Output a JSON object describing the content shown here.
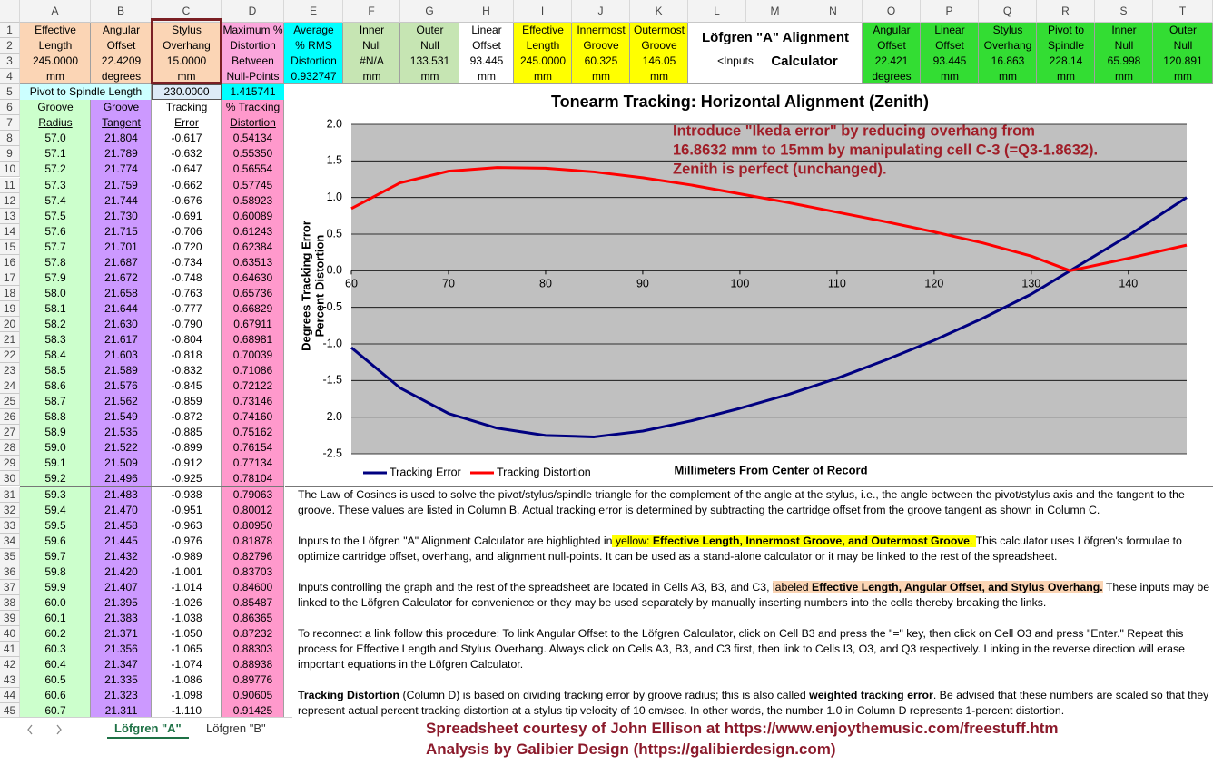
{
  "sheet": {
    "column_letters": [
      "A",
      "B",
      "C",
      "D",
      "E",
      "F",
      "G",
      "H",
      "I",
      "J",
      "K",
      "L",
      "M",
      "N",
      "O",
      "P",
      "Q",
      "R",
      "S",
      "T"
    ],
    "row_numbers": [
      1,
      2,
      3,
      4,
      5,
      6,
      7,
      8,
      9,
      10,
      11,
      12,
      13,
      14,
      15,
      16,
      17,
      18,
      19,
      20,
      21,
      22,
      23,
      24,
      25,
      26,
      27,
      28,
      29,
      30,
      31,
      32,
      33,
      34,
      35,
      36,
      37,
      38,
      39,
      40,
      41,
      42,
      43,
      44,
      45
    ],
    "header_cells": [
      [
        "Effective",
        "Length",
        "245.0000",
        "mm"
      ],
      [
        "Angular",
        "Offset",
        "22.4209",
        "degrees"
      ],
      [
        "Stylus",
        "Overhang",
        "15.0000",
        "mm"
      ],
      [
        "Maximum %",
        "Distortion",
        "Between",
        "Null-Points"
      ],
      [
        "Average",
        "% RMS",
        "Distortion",
        "0.932747"
      ],
      [
        "Inner",
        "Null",
        "#N/A",
        "mm"
      ],
      [
        "Outer",
        "Null",
        "133.531",
        "mm"
      ],
      [
        "Linear",
        "Offset",
        "93.445",
        "mm"
      ],
      [
        "Effective",
        "Length",
        "245.0000",
        "mm"
      ],
      [
        "Innermost",
        "Groove",
        "60.325",
        "mm"
      ],
      [
        "Outermost",
        "Groove",
        "146.05",
        "mm"
      ]
    ],
    "calculator_title": "Löfgren \"A\" Alignment",
    "calculator_inputs_note": "<Inputs",
    "calculator_subtitle": "Calculator",
    "calculator_cells": [
      [
        "Angular",
        "Offset",
        "22.421",
        "degrees"
      ],
      [
        "Linear",
        "Offset",
        "93.445",
        "mm"
      ],
      [
        "Stylus",
        "Overhang",
        "16.863",
        "mm"
      ],
      [
        "Pivot to",
        "Spindle",
        "228.14",
        "mm"
      ],
      [
        "Inner",
        "Null",
        "65.998",
        "mm"
      ],
      [
        "Outer",
        "Null",
        "120.891",
        "mm"
      ]
    ],
    "row5": {
      "label": "Pivot to Spindle Length",
      "pivot_to_spindle": "230.0000",
      "max_distortion": "1.415741"
    },
    "table_headers": [
      [
        "Groove",
        "Radius"
      ],
      [
        "Groove",
        "Tangent"
      ],
      [
        "Tracking",
        "Error"
      ],
      [
        "% Tracking",
        "Distortion"
      ]
    ],
    "rows": [
      [
        "57.0",
        "21.804",
        "-0.617",
        "0.54134"
      ],
      [
        "57.1",
        "21.789",
        "-0.632",
        "0.55350"
      ],
      [
        "57.2",
        "21.774",
        "-0.647",
        "0.56554"
      ],
      [
        "57.3",
        "21.759",
        "-0.662",
        "0.57745"
      ],
      [
        "57.4",
        "21.744",
        "-0.676",
        "0.58923"
      ],
      [
        "57.5",
        "21.730",
        "-0.691",
        "0.60089"
      ],
      [
        "57.6",
        "21.715",
        "-0.706",
        "0.61243"
      ],
      [
        "57.7",
        "21.701",
        "-0.720",
        "0.62384"
      ],
      [
        "57.8",
        "21.687",
        "-0.734",
        "0.63513"
      ],
      [
        "57.9",
        "21.672",
        "-0.748",
        "0.64630"
      ],
      [
        "58.0",
        "21.658",
        "-0.763",
        "0.65736"
      ],
      [
        "58.1",
        "21.644",
        "-0.777",
        "0.66829"
      ],
      [
        "58.2",
        "21.630",
        "-0.790",
        "0.67911"
      ],
      [
        "58.3",
        "21.617",
        "-0.804",
        "0.68981"
      ],
      [
        "58.4",
        "21.603",
        "-0.818",
        "0.70039"
      ],
      [
        "58.5",
        "21.589",
        "-0.832",
        "0.71086"
      ],
      [
        "58.6",
        "21.576",
        "-0.845",
        "0.72122"
      ],
      [
        "58.7",
        "21.562",
        "-0.859",
        "0.73146"
      ],
      [
        "58.8",
        "21.549",
        "-0.872",
        "0.74160"
      ],
      [
        "58.9",
        "21.535",
        "-0.885",
        "0.75162"
      ],
      [
        "59.0",
        "21.522",
        "-0.899",
        "0.76154"
      ],
      [
        "59.1",
        "21.509",
        "-0.912",
        "0.77134"
      ],
      [
        "59.2",
        "21.496",
        "-0.925",
        "0.78104"
      ],
      [
        "59.3",
        "21.483",
        "-0.938",
        "0.79063"
      ],
      [
        "59.4",
        "21.470",
        "-0.951",
        "0.80012"
      ],
      [
        "59.5",
        "21.458",
        "-0.963",
        "0.80950"
      ],
      [
        "59.6",
        "21.445",
        "-0.976",
        "0.81878"
      ],
      [
        "59.7",
        "21.432",
        "-0.989",
        "0.82796"
      ],
      [
        "59.8",
        "21.420",
        "-1.001",
        "0.83703"
      ],
      [
        "59.9",
        "21.407",
        "-1.014",
        "0.84600"
      ],
      [
        "60.0",
        "21.395",
        "-1.026",
        "0.85487"
      ],
      [
        "60.1",
        "21.383",
        "-1.038",
        "0.86365"
      ],
      [
        "60.2",
        "21.371",
        "-1.050",
        "0.87232"
      ],
      [
        "60.3",
        "21.356",
        "-1.065",
        "0.88303"
      ],
      [
        "60.4",
        "21.347",
        "-1.074",
        "0.88938"
      ],
      [
        "60.5",
        "21.335",
        "-1.086",
        "0.89776"
      ],
      [
        "60.6",
        "21.323",
        "-1.098",
        "0.90605"
      ],
      [
        "60.7",
        "21.311",
        "-1.110",
        "0.91425"
      ]
    ]
  },
  "chart_data": {
    "type": "line",
    "title": "Tonearm Tracking:  Horizontal Alignment (Zenith)",
    "annotation": [
      "Introduce \"Ikeda error\" by reducing overhang from",
      "16.8632 mm to 15mm by manipulating cell C-3 (=Q3-1.8632).",
      "Zenith is perfect (unchanged)."
    ],
    "y_label": [
      "Degrees Tracking Error",
      "Percent Distortion"
    ],
    "x_label": "Millimeters From Center of Record",
    "x": [
      60,
      65,
      70,
      75,
      80,
      85,
      90,
      95,
      100,
      105,
      110,
      115,
      120,
      125,
      130,
      134,
      140,
      146
    ],
    "series": [
      {
        "name": "Tracking Error",
        "color": "#000080",
        "values": [
          -1.05,
          -1.6,
          -1.95,
          -2.15,
          -2.25,
          -2.27,
          -2.19,
          -2.05,
          -1.88,
          -1.69,
          -1.47,
          -1.22,
          -0.95,
          -0.65,
          -0.32,
          0,
          0.48,
          1.0
        ]
      },
      {
        "name": "Tracking Distortion",
        "color": "#ff0000",
        "values": [
          0.85,
          1.2,
          1.36,
          1.41,
          1.4,
          1.35,
          1.27,
          1.17,
          1.05,
          0.93,
          0.8,
          0.67,
          0.53,
          0.38,
          0.2,
          0,
          0.17,
          0.35
        ]
      }
    ],
    "xlim": [
      60,
      146
    ],
    "ylim": [
      -2.5,
      2
    ],
    "xticks": [
      60,
      70,
      80,
      90,
      100,
      110,
      120,
      130,
      140
    ],
    "yticks": [
      {
        "value": 2,
        "label": "2.0"
      },
      1.5,
      {
        "value": 1,
        "label": "1.0"
      },
      0.5,
      {
        "value": 0,
        "label": "0.0"
      },
      -0.5,
      {
        "value": -1,
        "label": "-1.0"
      },
      -1.5,
      {
        "value": -2,
        "label": "-2.0"
      },
      -2.5
    ],
    "grid": true,
    "legend": "bottom-left"
  },
  "notes": {
    "paragraphs": [
      [
        "The Law of Cosines is used to solve the pivot/stylus/spindle triangle for the complement of the angle at the stylus, i.e., the angle between the pivot/stylus axis and the tangent to the groove.  These values are listed in Column B.  Actual tracking error is determined by subtracting the cartridge offset from the groove tangent as shown in Column C."
      ],
      [
        "Inputs to the Löfgren \"A\" Alignment Calculator are highlighted in",
        " yellow:  ",
        "Effective Length, Innermost Groove, and Outermost Groove",
        ".  ",
        "This calculator uses Löfgren's formulae to optimize cartridge offset, overhang, and alignment null-points.  It can be used as a stand-alone calculator or it may be linked to the rest of the spreadsheet."
      ],
      [
        "Inputs controlling the graph and the rest of the spreadsheet are located in Cells A3, B3, and C3, ",
        "labeled ",
        "Effective Length, Angular Offset, and Stylus Overhang",
        ".",
        " These inputs may be linked to the Löfgren Calculator for convenience or they may be used separately by manually inserting numbers into the cells thereby breaking the links."
      ],
      [
        "To reconnect a link follow this procedure:  To link Angular Offset to the Löfgren Calculator, click on Cell B3 and press the \"=\" key, then click on Cell O3 and press \"Enter.\"  Repeat this process for Effective Length and Stylus Overhang.  Always click on Cells A3, B3, and C3 first, then link to Cells I3, O3, and Q3 respectively.  Linking in the reverse direction will erase important equations in the Löfgren Calculator."
      ],
      [
        "Tracking Distortion",
        " (Column D) is based on dividing tracking error by groove radius; this is also called ",
        "weighted tracking error",
        ".  Be advised that these numbers are scaled so that they represent actual percent tracking distortion at a stylus tip velocity of 10 cm/sec.  In other words, the number 1.0 in Column D represents 1-percent distortion."
      ]
    ]
  },
  "tabs": [
    "Löfgren \"A\"",
    "Löfgren \"B\""
  ],
  "credits": [
    "Spreadsheet courtesy of John Ellison at https://www.enjoythemusic.com/freestuff.htm",
    "Analysis by Galibier Design (https://galibierdesign.com)"
  ]
}
